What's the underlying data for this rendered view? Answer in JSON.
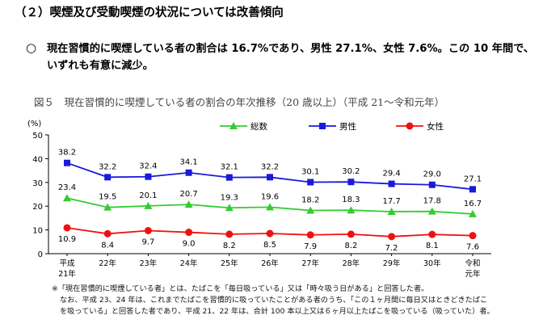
{
  "heading": "（２）喫煙及び受動喫煙の状況については改善傾向",
  "summary": {
    "mark": "○",
    "text": "現在習慣的に喫煙している者の割合は 16.7%であり、男性 27.1%、女性 7.6%。この 10 年間で、いずれも有意に減少。"
  },
  "figure_caption": "図５　現在習慣的に喫煙している者の割合の年次推移（20 歳以上）（平成 21～令和元年）",
  "notes": [
    "※「現在習慣的に喫煙している者」とは、たばこを「毎日吸っている」又は「時々吸う日がある」と回答した者。",
    "なお、平成 23、24 年は、これまでたばこを習慣的に吸っていたことがある者のうち、「この１ヶ月間に毎日又はときどきたばこ",
    "を吸っている」と回答した者であり、平成 21、22 年は、合計 100 本以上又は６ヶ月以上たばこを吸っている（吸っていた）者。"
  ],
  "chart_data": {
    "type": "line",
    "ylabel": "(%)",
    "ylim": [
      0,
      50
    ],
    "yticks": [
      0,
      10,
      20,
      30,
      40,
      50
    ],
    "categories": [
      "平成\n21年",
      "22年",
      "23年",
      "24年",
      "25年",
      "26年",
      "27年",
      "28年",
      "29年",
      "30年",
      "令和\n元年"
    ],
    "legend_position": "top",
    "grid": false,
    "series": [
      {
        "name": "総数",
        "color": "#33cc33",
        "marker": "triangle",
        "values": [
          23.4,
          19.5,
          20.1,
          20.7,
          19.3,
          19.6,
          18.2,
          18.3,
          17.7,
          17.8,
          16.7
        ]
      },
      {
        "name": "男性",
        "color": "#1a1adb",
        "marker": "square",
        "values": [
          38.2,
          32.2,
          32.4,
          34.1,
          32.1,
          32.2,
          30.1,
          30.2,
          29.4,
          29.0,
          27.1
        ]
      },
      {
        "name": "女性",
        "color": "#ee1111",
        "marker": "circle",
        "values": [
          10.9,
          8.4,
          9.7,
          9.0,
          8.2,
          8.5,
          7.9,
          8.2,
          7.2,
          8.1,
          7.6
        ]
      }
    ]
  }
}
